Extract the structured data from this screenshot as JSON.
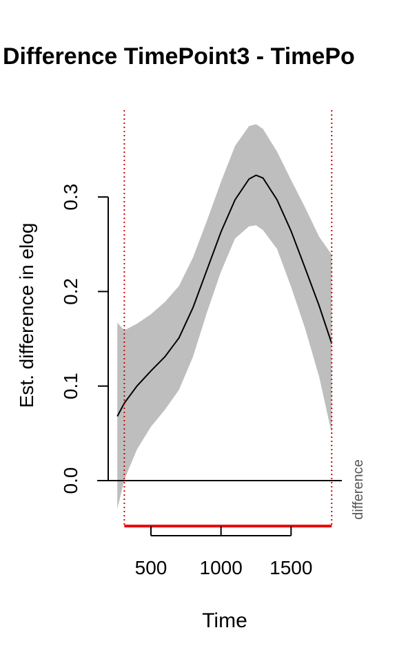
{
  "chart_data": {
    "type": "line",
    "title": "Difference TimePoint3 - TimePo",
    "xlabel": "Time",
    "ylabel": "Est. difference in elog",
    "side_label": "difference",
    "xlim": [
      250,
      1800
    ],
    "ylim": [
      -0.05,
      0.38
    ],
    "x_ticks": [
      500,
      1000,
      1500
    ],
    "x_tick_labels": [
      "500",
      "1000",
      "1500"
    ],
    "y_ticks": [
      0.0,
      0.1,
      0.2,
      0.3
    ],
    "y_tick_labels": [
      "0.0",
      "0.1",
      "0.2",
      "0.3"
    ],
    "reference_line_y": 0.0,
    "vertical_lines_x": [
      310,
      1790
    ],
    "significant_range": [
      310,
      1790
    ],
    "grid": false,
    "colors": {
      "estimate": "#000000",
      "ci_band": "#bebebe",
      "vertical_lines": "#cc0000",
      "significance_bar": "#ee0000",
      "axis": "#000000",
      "side_label": "#555555"
    },
    "series": [
      {
        "x": [
          260,
          310,
          400,
          500,
          600,
          700,
          800,
          900,
          1000,
          1100,
          1200,
          1250,
          1300,
          1400,
          1500,
          1600,
          1700,
          1790
        ],
        "y": [
          0.068,
          0.082,
          0.1,
          0.116,
          0.131,
          0.151,
          0.183,
          0.223,
          0.263,
          0.297,
          0.319,
          0.323,
          0.32,
          0.297,
          0.264,
          0.225,
          0.185,
          0.145
        ],
        "lower": [
          -0.03,
          0.001,
          0.033,
          0.057,
          0.075,
          0.096,
          0.131,
          0.178,
          0.221,
          0.256,
          0.269,
          0.27,
          0.265,
          0.245,
          0.205,
          0.161,
          0.11,
          0.05
        ],
        "upper": [
          0.167,
          0.159,
          0.166,
          0.176,
          0.189,
          0.206,
          0.236,
          0.275,
          0.316,
          0.354,
          0.375,
          0.377,
          0.372,
          0.348,
          0.318,
          0.289,
          0.258,
          0.239
        ]
      }
    ]
  }
}
